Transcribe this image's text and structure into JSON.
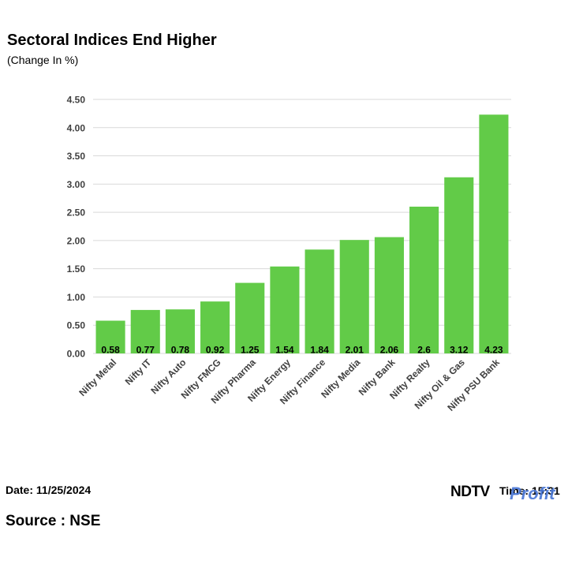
{
  "header": {
    "title": "Sectoral Indices End Higher",
    "subtitle": "(Change In %)"
  },
  "footer": {
    "date": "Date: 11/25/2024",
    "time": "Time: 15:31",
    "source": "Source : NSE",
    "logo_ndtv": "NDTV",
    "logo_profit": "Profit"
  },
  "colors": {
    "bar": "#62cb48",
    "grid": "#d9d9d9",
    "axis_text": "#404040"
  },
  "chart_data": {
    "type": "bar",
    "title": "Sectoral Indices End Higher",
    "subtitle": "(Change In %)",
    "categories": [
      "Nifty Metal",
      "Nifty IT",
      "Nifty Auto",
      "Nifty FMCG",
      "Nifty Pharma",
      "Nifty Energy",
      "Nifty Finance",
      "Nifty Media",
      "Nifty Bank",
      "Nifty Realty",
      "Nifty Oil & Gas",
      "Nifty PSU Bank"
    ],
    "values": [
      0.58,
      0.77,
      0.78,
      0.92,
      1.25,
      1.54,
      1.84,
      2.01,
      2.06,
      2.6,
      3.12,
      4.23
    ],
    "data_labels": [
      "0.58",
      "0.77",
      "0.78",
      "0.92",
      "1.25",
      "1.54",
      "1.84",
      "2.01",
      "2.06",
      "2.6",
      "3.12",
      "4.23"
    ],
    "yticks": [
      "0.00",
      "0.50",
      "1.00",
      "1.50",
      "2.00",
      "2.50",
      "3.00",
      "3.50",
      "4.00",
      "4.50"
    ],
    "ylim": [
      0,
      4.5
    ],
    "grid": true,
    "legend": "none",
    "xlabel": "",
    "ylabel": ""
  }
}
